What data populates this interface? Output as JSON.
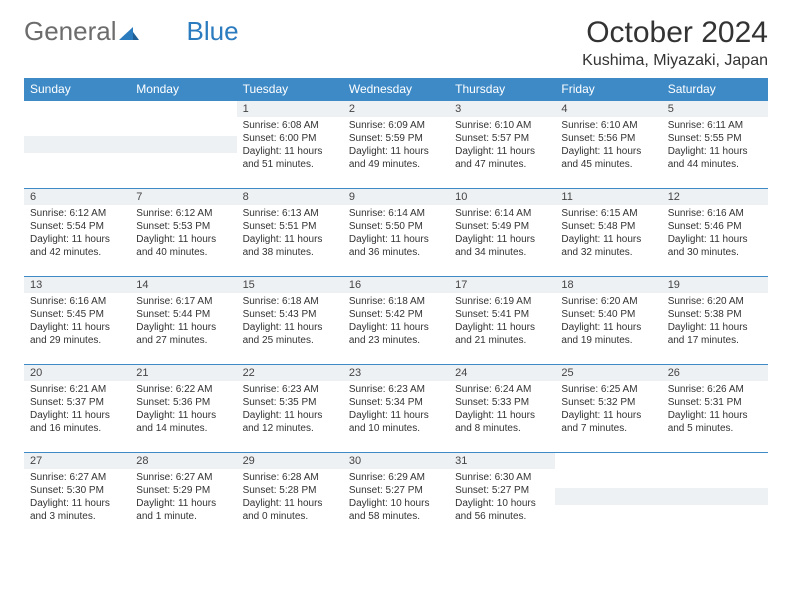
{
  "logo": {
    "part1": "General",
    "part2": "Blue"
  },
  "title": "October 2024",
  "location": "Kushima, Miyazaki, Japan",
  "weekdays": [
    "Sunday",
    "Monday",
    "Tuesday",
    "Wednesday",
    "Thursday",
    "Friday",
    "Saturday"
  ],
  "colors": {
    "header_bg": "#3d8ac7",
    "header_text": "#ffffff",
    "daynum_bg": "#eef1f4",
    "border": "#3d8ac7",
    "logo_gray": "#6c6c6c",
    "logo_blue": "#2b7bbf",
    "text": "#333333"
  },
  "first_weekday_index": 2,
  "days": [
    {
      "n": "1",
      "sunrise": "Sunrise: 6:08 AM",
      "sunset": "Sunset: 6:00 PM",
      "daylight": "Daylight: 11 hours and 51 minutes."
    },
    {
      "n": "2",
      "sunrise": "Sunrise: 6:09 AM",
      "sunset": "Sunset: 5:59 PM",
      "daylight": "Daylight: 11 hours and 49 minutes."
    },
    {
      "n": "3",
      "sunrise": "Sunrise: 6:10 AM",
      "sunset": "Sunset: 5:57 PM",
      "daylight": "Daylight: 11 hours and 47 minutes."
    },
    {
      "n": "4",
      "sunrise": "Sunrise: 6:10 AM",
      "sunset": "Sunset: 5:56 PM",
      "daylight": "Daylight: 11 hours and 45 minutes."
    },
    {
      "n": "5",
      "sunrise": "Sunrise: 6:11 AM",
      "sunset": "Sunset: 5:55 PM",
      "daylight": "Daylight: 11 hours and 44 minutes."
    },
    {
      "n": "6",
      "sunrise": "Sunrise: 6:12 AM",
      "sunset": "Sunset: 5:54 PM",
      "daylight": "Daylight: 11 hours and 42 minutes."
    },
    {
      "n": "7",
      "sunrise": "Sunrise: 6:12 AM",
      "sunset": "Sunset: 5:53 PM",
      "daylight": "Daylight: 11 hours and 40 minutes."
    },
    {
      "n": "8",
      "sunrise": "Sunrise: 6:13 AM",
      "sunset": "Sunset: 5:51 PM",
      "daylight": "Daylight: 11 hours and 38 minutes."
    },
    {
      "n": "9",
      "sunrise": "Sunrise: 6:14 AM",
      "sunset": "Sunset: 5:50 PM",
      "daylight": "Daylight: 11 hours and 36 minutes."
    },
    {
      "n": "10",
      "sunrise": "Sunrise: 6:14 AM",
      "sunset": "Sunset: 5:49 PM",
      "daylight": "Daylight: 11 hours and 34 minutes."
    },
    {
      "n": "11",
      "sunrise": "Sunrise: 6:15 AM",
      "sunset": "Sunset: 5:48 PM",
      "daylight": "Daylight: 11 hours and 32 minutes."
    },
    {
      "n": "12",
      "sunrise": "Sunrise: 6:16 AM",
      "sunset": "Sunset: 5:46 PM",
      "daylight": "Daylight: 11 hours and 30 minutes."
    },
    {
      "n": "13",
      "sunrise": "Sunrise: 6:16 AM",
      "sunset": "Sunset: 5:45 PM",
      "daylight": "Daylight: 11 hours and 29 minutes."
    },
    {
      "n": "14",
      "sunrise": "Sunrise: 6:17 AM",
      "sunset": "Sunset: 5:44 PM",
      "daylight": "Daylight: 11 hours and 27 minutes."
    },
    {
      "n": "15",
      "sunrise": "Sunrise: 6:18 AM",
      "sunset": "Sunset: 5:43 PM",
      "daylight": "Daylight: 11 hours and 25 minutes."
    },
    {
      "n": "16",
      "sunrise": "Sunrise: 6:18 AM",
      "sunset": "Sunset: 5:42 PM",
      "daylight": "Daylight: 11 hours and 23 minutes."
    },
    {
      "n": "17",
      "sunrise": "Sunrise: 6:19 AM",
      "sunset": "Sunset: 5:41 PM",
      "daylight": "Daylight: 11 hours and 21 minutes."
    },
    {
      "n": "18",
      "sunrise": "Sunrise: 6:20 AM",
      "sunset": "Sunset: 5:40 PM",
      "daylight": "Daylight: 11 hours and 19 minutes."
    },
    {
      "n": "19",
      "sunrise": "Sunrise: 6:20 AM",
      "sunset": "Sunset: 5:38 PM",
      "daylight": "Daylight: 11 hours and 17 minutes."
    },
    {
      "n": "20",
      "sunrise": "Sunrise: 6:21 AM",
      "sunset": "Sunset: 5:37 PM",
      "daylight": "Daylight: 11 hours and 16 minutes."
    },
    {
      "n": "21",
      "sunrise": "Sunrise: 6:22 AM",
      "sunset": "Sunset: 5:36 PM",
      "daylight": "Daylight: 11 hours and 14 minutes."
    },
    {
      "n": "22",
      "sunrise": "Sunrise: 6:23 AM",
      "sunset": "Sunset: 5:35 PM",
      "daylight": "Daylight: 11 hours and 12 minutes."
    },
    {
      "n": "23",
      "sunrise": "Sunrise: 6:23 AM",
      "sunset": "Sunset: 5:34 PM",
      "daylight": "Daylight: 11 hours and 10 minutes."
    },
    {
      "n": "24",
      "sunrise": "Sunrise: 6:24 AM",
      "sunset": "Sunset: 5:33 PM",
      "daylight": "Daylight: 11 hours and 8 minutes."
    },
    {
      "n": "25",
      "sunrise": "Sunrise: 6:25 AM",
      "sunset": "Sunset: 5:32 PM",
      "daylight": "Daylight: 11 hours and 7 minutes."
    },
    {
      "n": "26",
      "sunrise": "Sunrise: 6:26 AM",
      "sunset": "Sunset: 5:31 PM",
      "daylight": "Daylight: 11 hours and 5 minutes."
    },
    {
      "n": "27",
      "sunrise": "Sunrise: 6:27 AM",
      "sunset": "Sunset: 5:30 PM",
      "daylight": "Daylight: 11 hours and 3 minutes."
    },
    {
      "n": "28",
      "sunrise": "Sunrise: 6:27 AM",
      "sunset": "Sunset: 5:29 PM",
      "daylight": "Daylight: 11 hours and 1 minute."
    },
    {
      "n": "29",
      "sunrise": "Sunrise: 6:28 AM",
      "sunset": "Sunset: 5:28 PM",
      "daylight": "Daylight: 11 hours and 0 minutes."
    },
    {
      "n": "30",
      "sunrise": "Sunrise: 6:29 AM",
      "sunset": "Sunset: 5:27 PM",
      "daylight": "Daylight: 10 hours and 58 minutes."
    },
    {
      "n": "31",
      "sunrise": "Sunrise: 6:30 AM",
      "sunset": "Sunset: 5:27 PM",
      "daylight": "Daylight: 10 hours and 56 minutes."
    }
  ]
}
